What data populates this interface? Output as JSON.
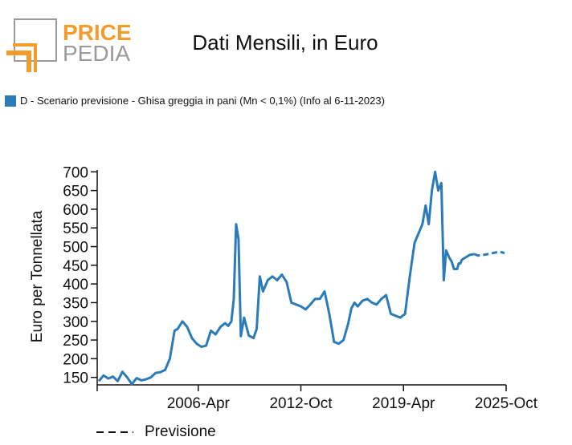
{
  "logo": {
    "line1": "PRICE",
    "line2": "PEDIA",
    "brand_color": "#f39c2b",
    "grey_color": "#9a9a9a"
  },
  "title": "Dati Mensili, in Euro",
  "legend": {
    "label": "D - Scenario previsione - Ghisa greggia in pani (Mn < 0,1%) (Info al 6-11-2023)",
    "color": "#2b7bb9"
  },
  "forecast_legend": {
    "label": "Previsione",
    "style": "dashed"
  },
  "chart_data": {
    "type": "line",
    "title": "Dati Mensili, in Euro",
    "ylabel": "Euro per Tonnellata",
    "xlabel": "",
    "ylim": [
      130,
      705
    ],
    "yticks": [
      150,
      200,
      250,
      300,
      350,
      400,
      450,
      500,
      550,
      600,
      650,
      700
    ],
    "xlim": [
      1999.9,
      2025.8
    ],
    "xticks": [
      {
        "x": 1999.9,
        "label": ""
      },
      {
        "x": 2006.3,
        "label": "2006-Apr"
      },
      {
        "x": 2012.8,
        "label": "2012-Oct"
      },
      {
        "x": 2019.3,
        "label": "2019-Apr"
      },
      {
        "x": 2025.8,
        "label": "2025-Oct"
      }
    ],
    "grid": false,
    "series": [
      {
        "name": "D - Scenario previsione - Ghisa greggia in pani (Mn < 0,1%) (Info al 6-11-2023)",
        "color": "#2b7bb9",
        "style": "solid",
        "x": [
          2000.0,
          2000.3,
          2000.6,
          2000.9,
          2001.2,
          2001.5,
          2001.8,
          2002.1,
          2002.4,
          2002.7,
          2003.0,
          2003.3,
          2003.6,
          2003.9,
          2004.2,
          2004.5,
          2004.8,
          2005.0,
          2005.3,
          2005.6,
          2005.9,
          2006.2,
          2006.5,
          2006.8,
          2007.1,
          2007.4,
          2007.7,
          2008.0,
          2008.2,
          2008.4,
          2008.55,
          2008.7,
          2008.85,
          2009.0,
          2009.2,
          2009.5,
          2009.8,
          2010.0,
          2010.2,
          2010.4,
          2010.7,
          2011.0,
          2011.3,
          2011.6,
          2011.9,
          2012.2,
          2012.5,
          2012.8,
          2013.1,
          2013.4,
          2013.7,
          2014.0,
          2014.3,
          2014.6,
          2014.9,
          2015.2,
          2015.5,
          2015.8,
          2016.0,
          2016.2,
          2016.4,
          2016.7,
          2017.0,
          2017.3,
          2017.6,
          2017.9,
          2018.2,
          2018.5,
          2018.8,
          2019.1,
          2019.4,
          2019.7,
          2020.0,
          2020.3,
          2020.5,
          2020.7,
          2020.9,
          2021.1,
          2021.3,
          2021.5,
          2021.7,
          2021.85,
          2022.0,
          2022.2,
          2022.35,
          2022.5,
          2022.7,
          2022.8,
          2022.9,
          2023.0,
          2023.2,
          2023.5,
          2023.8
        ],
        "y": [
          140,
          155,
          147,
          152,
          140,
          165,
          150,
          132,
          148,
          142,
          145,
          150,
          162,
          164,
          170,
          200,
          275,
          280,
          300,
          285,
          255,
          240,
          232,
          235,
          275,
          265,
          285,
          295,
          288,
          300,
          360,
          560,
          520,
          260,
          310,
          262,
          255,
          280,
          420,
          380,
          410,
          420,
          410,
          425,
          405,
          350,
          345,
          340,
          332,
          345,
          360,
          360,
          380,
          320,
          245,
          240,
          250,
          295,
          335,
          350,
          340,
          355,
          360,
          350,
          345,
          360,
          370,
          320,
          315,
          310,
          320,
          420,
          510,
          540,
          560,
          610,
          560,
          650,
          700,
          650,
          670,
          410,
          490,
          470,
          460,
          440,
          440,
          455,
          455,
          465,
          470,
          478,
          480
        ]
      },
      {
        "name": "",
        "color": "#2b7bb9",
        "style": "dashed",
        "x": [
          2023.8,
          2024.0,
          2024.4,
          2024.8,
          2025.1,
          2025.4,
          2025.7
        ],
        "y": [
          480,
          476,
          478,
          481,
          484,
          486,
          483
        ]
      }
    ]
  }
}
